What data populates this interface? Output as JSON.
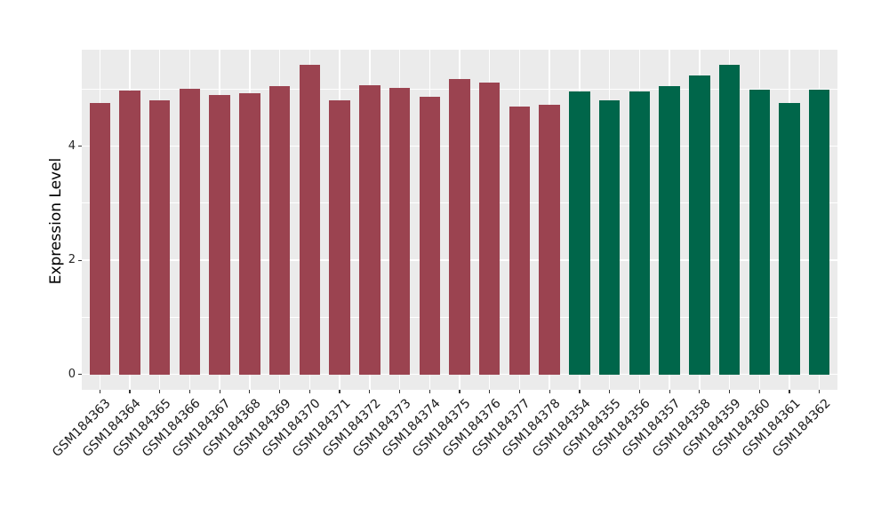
{
  "chart_data": {
    "type": "bar",
    "title": "",
    "xlabel": "",
    "ylabel": "Expression Level",
    "ylim": [
      -0.27,
      5.69
    ],
    "yticks": [
      {
        "value": 0,
        "label": "0"
      },
      {
        "value": 2,
        "label": "2"
      },
      {
        "value": 4,
        "label": "4"
      }
    ],
    "yticks_minor": [
      1,
      3,
      5
    ],
    "grid": "on",
    "legend_position": "none",
    "colors": {
      "figure_background": "#ffffff",
      "panel_background": "#ebebeb",
      "gridline": "#ffffff",
      "tick_mark": "#333333",
      "axis_text": "#262626",
      "group_red": "#9b4350",
      "group_green": "#00664a"
    },
    "bars": [
      {
        "label": "GSM184363",
        "value": 4.76,
        "group": "group_red"
      },
      {
        "label": "GSM184364",
        "value": 4.97,
        "group": "group_red"
      },
      {
        "label": "GSM184365",
        "value": 4.81,
        "group": "group_red"
      },
      {
        "label": "GSM184366",
        "value": 5.01,
        "group": "group_red"
      },
      {
        "label": "GSM184367",
        "value": 4.89,
        "group": "group_red"
      },
      {
        "label": "GSM184368",
        "value": 4.93,
        "group": "group_red"
      },
      {
        "label": "GSM184369",
        "value": 5.05,
        "group": "group_red"
      },
      {
        "label": "GSM184370",
        "value": 5.42,
        "group": "group_red"
      },
      {
        "label": "GSM184371",
        "value": 4.8,
        "group": "group_red"
      },
      {
        "label": "GSM184372",
        "value": 5.06,
        "group": "group_red"
      },
      {
        "label": "GSM184373",
        "value": 5.02,
        "group": "group_red"
      },
      {
        "label": "GSM184374",
        "value": 4.87,
        "group": "group_red"
      },
      {
        "label": "GSM184375",
        "value": 5.18,
        "group": "group_red"
      },
      {
        "label": "GSM184376",
        "value": 5.12,
        "group": "group_red"
      },
      {
        "label": "GSM184377",
        "value": 4.7,
        "group": "group_red"
      },
      {
        "label": "GSM184378",
        "value": 4.72,
        "group": "group_red"
      },
      {
        "label": "GSM184354",
        "value": 4.96,
        "group": "group_green"
      },
      {
        "label": "GSM184355",
        "value": 4.81,
        "group": "group_green"
      },
      {
        "label": "GSM184356",
        "value": 4.96,
        "group": "group_green"
      },
      {
        "label": "GSM184357",
        "value": 5.05,
        "group": "group_green"
      },
      {
        "label": "GSM184358",
        "value": 5.24,
        "group": "group_green"
      },
      {
        "label": "GSM184359",
        "value": 5.43,
        "group": "group_green"
      },
      {
        "label": "GSM184360",
        "value": 4.99,
        "group": "group_green"
      },
      {
        "label": "GSM184361",
        "value": 4.76,
        "group": "group_green"
      },
      {
        "label": "GSM184362",
        "value": 4.99,
        "group": "group_green"
      }
    ]
  }
}
